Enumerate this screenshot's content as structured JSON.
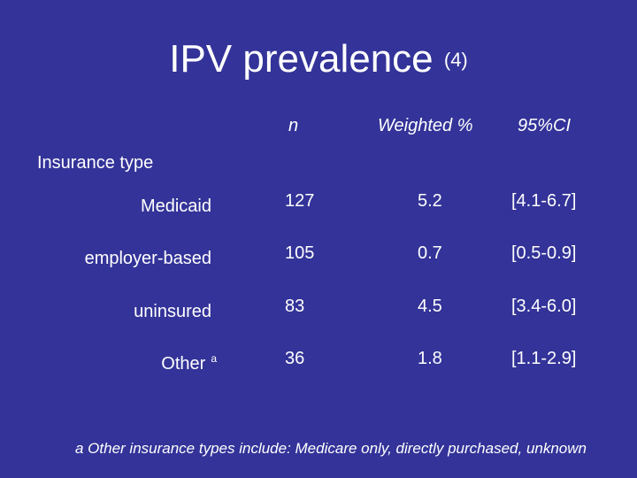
{
  "slide": {
    "title": "IPV prevalence",
    "title_ref": "(4)",
    "background": "#333399"
  },
  "table": {
    "columns": [
      "n",
      "Weighted %",
      "95%CI"
    ],
    "section": "Insurance type",
    "rows": [
      {
        "label": "Medicaid",
        "sup": "",
        "n": "127",
        "weighted": "5.2",
        "ci": "[4.1-6.7]"
      },
      {
        "label": "employer-based",
        "sup": "",
        "n": "105",
        "weighted": "0.7",
        "ci": "[0.5-0.9]"
      },
      {
        "label": "uninsured",
        "sup": "",
        "n": "83",
        "weighted": "4.5",
        "ci": "[3.4-6.0]"
      },
      {
        "label": "Other",
        "sup": "a",
        "n": "36",
        "weighted": "1.8",
        "ci": "[1.1-2.9]"
      }
    ]
  },
  "footnote": "a Other insurance types include: Medicare only, directly purchased, unknown"
}
